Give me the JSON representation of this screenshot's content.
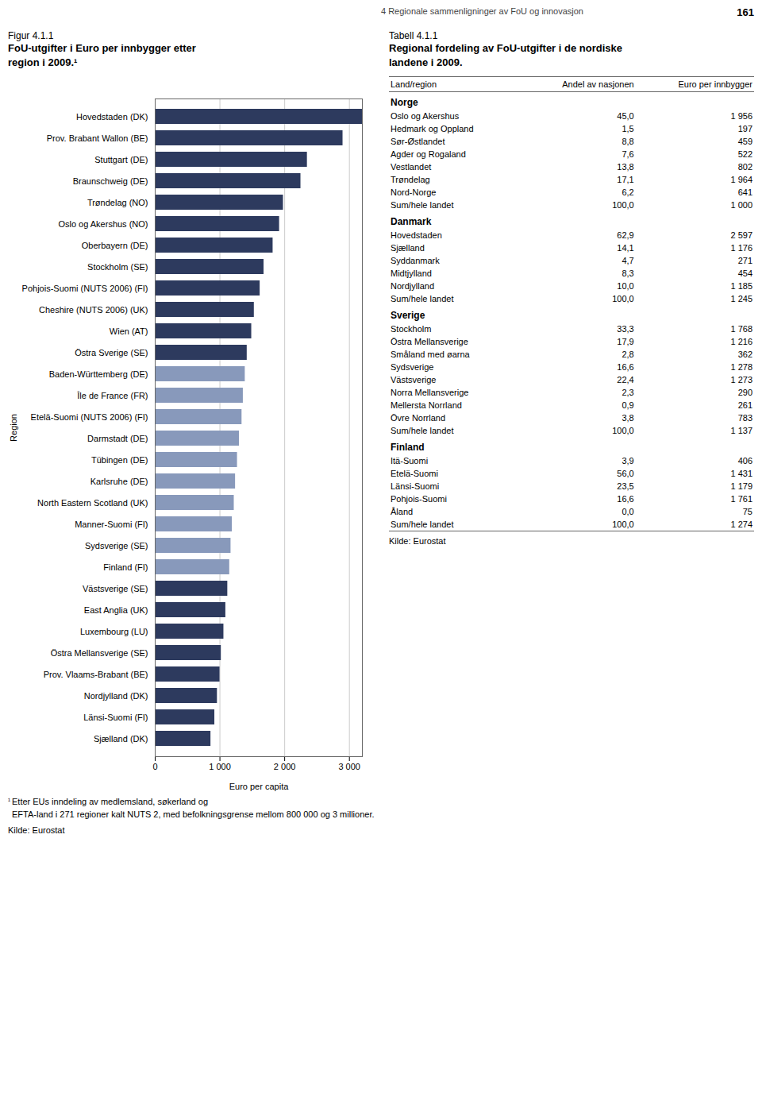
{
  "annotations": [
    "4 Regionale sammenligninger av FoU og innovasjon",
    "161"
  ],
  "chart_data": [
    {
      "type": "bar",
      "orientation": "horizontal",
      "subtitle": "Figur 4.1.1",
      "title": "FoU-utgifter i Euro per innbygger etter\nregion i 2009.¹",
      "xlabel": "Euro per capita",
      "ylabel": "Region",
      "categories": [
        "Hovedstaden (DK)",
        "Prov. Brabant Wallon (BE)",
        "Stuttgart (DE)",
        "Braunschweig (DE)",
        "Trøndelag (NO)",
        "Oslo og Akershus (NO)",
        "Oberbayern (DE)",
        "Stockholm (SE)",
        "Pohjois-Suomi (NUTS 2006) (FI)",
        "Cheshire (NUTS 2006) (UK)",
        "Wien (AT)",
        "Östra Sverige (SE)",
        "Baden-Württemberg (DE)",
        "Île de France (FR)",
        "Etelä-Suomi (NUTS 2006) (FI)",
        "Darmstadt (DE)",
        "Tübingen (DE)",
        "Karlsruhe (DE)",
        "North Eastern Scotland (UK)",
        "Manner-Suomi (FI)",
        "Sydsverige (SE)",
        "Finland (FI)",
        "Västsverige (SE)",
        "East Anglia (UK)",
        "Luxembourg (LU)",
        "Östra Mellansverige (SE)",
        "Prov. Vlaams-Brabant (BE)",
        "Nordjylland (DK)",
        "Länsi-Suomi (FI)",
        "Sjælland (DK)"
      ],
      "values": [
        3200,
        2900,
        2350,
        2250,
        1980,
        1920,
        1820,
        1680,
        1620,
        1530,
        1490,
        1420,
        1390,
        1360,
        1340,
        1300,
        1270,
        1240,
        1220,
        1190,
        1170,
        1150,
        1120,
        1090,
        1060,
        1020,
        1000,
        960,
        920,
        860
      ],
      "colors": [
        "#2d3a5e",
        "#2d3a5e",
        "#2d3a5e",
        "#2d3a5e",
        "#2d3a5e",
        "#2d3a5e",
        "#2d3a5e",
        "#2d3a5e",
        "#2d3a5e",
        "#2d3a5e",
        "#2d3a5e",
        "#2d3a5e",
        "#8899bb",
        "#8899bb",
        "#8899bb",
        "#8899bb",
        "#8899bb",
        "#8899bb",
        "#8899bb",
        "#8899bb",
        "#8899bb",
        "#8899bb",
        "#2d3a5e",
        "#2d3a5e",
        "#2d3a5e",
        "#2d3a5e",
        "#2d3a5e",
        "#2d3a5e",
        "#2d3a5e",
        "#2d3a5e"
      ],
      "xlim": [
        0,
        3200
      ],
      "xticks": [
        0,
        {
          "value": 1000,
          "label": "1 000"
        },
        {
          "value": 2000,
          "label": "2 000"
        },
        {
          "value": 3000,
          "label": "3 000"
        }
      ],
      "grid": true,
      "annotations": [
        "¹",
        " Etter EUs inndeling av medlemsland, søkerland og\n   EFTA-land i 271 regioner kalt NUTS 2, med befolkningsgrense mellom 800 000 og 3 millioner.",
        "Kilde: Eurostat"
      ]
    },
    {
      "type": "table",
      "subtitle": "Tabell 4.1.1",
      "title": "Regional fordeling av FoU-utgifter i de nordiske\nlandene i 2009.",
      "columns": [
        "Land/region",
        "Andel av nasjonen",
        "Euro per innbygger"
      ],
      "sections": [
        {
          "section": "Norge",
          "rows": [
            [
              "Oslo og Akershus",
              "45,0",
              "1 956"
            ],
            [
              "Hedmark og Oppland",
              "1,5",
              "197"
            ],
            [
              "Sør-Østlandet",
              "8,8",
              "459"
            ],
            [
              "Agder og Rogaland",
              "7,6",
              "522"
            ],
            [
              "Vestlandet",
              "13,8",
              "802"
            ],
            [
              "Trøndelag",
              "17,1",
              "1 964"
            ],
            [
              "Nord-Norge",
              "6,2",
              "641"
            ],
            [
              "Sum/hele landet",
              "100,0",
              "1 000"
            ]
          ]
        },
        {
          "section": "Danmark",
          "rows": [
            [
              "Hovedstaden",
              "62,9",
              "2 597"
            ],
            [
              "Sjælland",
              "14,1",
              "1 176"
            ],
            [
              "Syddanmark",
              "4,7",
              "271"
            ],
            [
              "Midtjylland",
              "8,3",
              "454"
            ],
            [
              "Nordjylland",
              "10,0",
              "1 185"
            ],
            [
              "Sum/hele landet",
              "100,0",
              "1 245"
            ]
          ]
        },
        {
          "section": "Sverige",
          "rows": [
            [
              "Stockholm",
              "33,3",
              "1 768"
            ],
            [
              "Östra Mellansverige",
              "17,9",
              "1 216"
            ],
            [
              "Småland med øarna",
              "2,8",
              "362"
            ],
            [
              "Sydsverige",
              "16,6",
              "1 278"
            ],
            [
              "Västsverige",
              "22,4",
              "1 273"
            ],
            [
              "Norra Mellansverige",
              "2,3",
              "290"
            ],
            [
              "Mellersta Norrland",
              "0,9",
              "261"
            ],
            [
              "Övre Norrland",
              "3,8",
              "783"
            ],
            [
              "Sum/hele landet",
              "100,0",
              "1 137"
            ]
          ]
        },
        {
          "section": "Finland",
          "rows": [
            [
              "Itä-Suomi",
              "3,9",
              "406"
            ],
            [
              "Etelä-Suomi",
              "56,0",
              "1 431"
            ],
            [
              "Länsi-Suomi",
              "23,5",
              "1 179"
            ],
            [
              "Pohjois-Suomi",
              "16,6",
              "1 761"
            ],
            [
              "Åland",
              "0,0",
              "75"
            ],
            [
              "Sum/hele landet",
              "100,0",
              "1 274"
            ]
          ]
        }
      ],
      "annotations": [
        "Kilde: Eurostat"
      ]
    }
  ]
}
